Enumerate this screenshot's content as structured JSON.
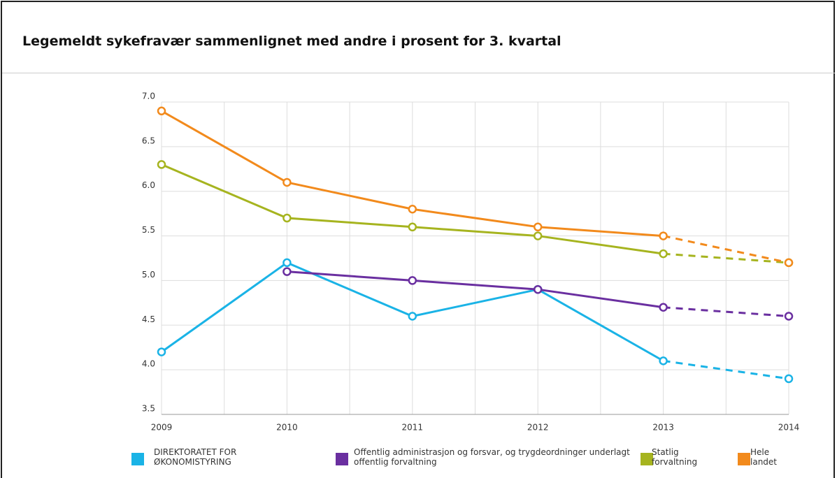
{
  "chart_data": {
    "type": "line",
    "title": "Legemeldt sykefravær sammenlignet med andre i prosent for 3. kvartal",
    "x": [
      2009,
      2010,
      2011,
      2012,
      2013,
      2014
    ],
    "series": [
      {
        "name": "DIREKTORATET FOR ØKONOMISTYRING",
        "color": "#1ab3e6",
        "values": [
          4.2,
          5.2,
          4.6,
          4.9,
          4.1,
          3.9
        ]
      },
      {
        "name": "Offentlig administrasjon og forsvar, og trygdeordninger underlagt offentlig forvaltning",
        "color": "#6a2fa0",
        "values": [
          null,
          5.1,
          5.0,
          4.9,
          4.7,
          4.6
        ]
      },
      {
        "name": "Statlig forvaltning",
        "color": "#a6b41f",
        "values": [
          6.3,
          5.7,
          5.6,
          5.5,
          5.3,
          5.2
        ]
      },
      {
        "name": "Hele landet",
        "color": "#f28a1c",
        "values": [
          6.9,
          6.1,
          5.8,
          5.6,
          5.5,
          5.2
        ]
      }
    ],
    "xlim": [
      2009,
      2014
    ],
    "xticks": [
      2009,
      2010,
      2011,
      2012,
      2013,
      2014
    ],
    "ylim": [
      3.5,
      7.0
    ],
    "yticks": [
      3.5,
      {
        "value": 4.0,
        "label": "4.0"
      },
      4.5,
      {
        "value": 5.0,
        "label": "5.0"
      },
      5.5,
      {
        "value": 6.0,
        "label": "6.0"
      },
      6.5,
      {
        "value": 7.0,
        "label": "7.0"
      }
    ],
    "grid": true,
    "dashed_from": 2013,
    "legend": "bottom"
  }
}
